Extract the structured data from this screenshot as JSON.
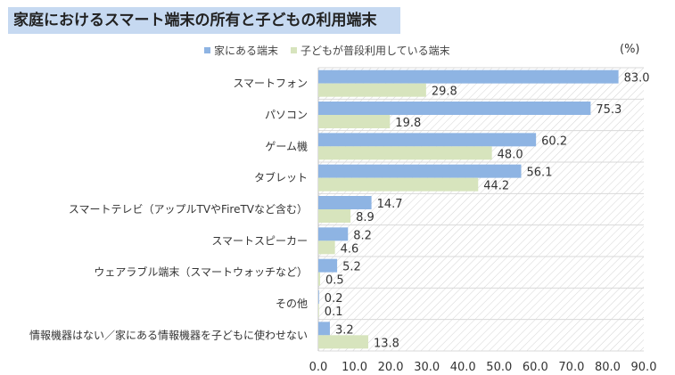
{
  "title": "家庭におけるスマート端末の所有と子どもの利用端末",
  "unit_label": "(%)",
  "chart_data": {
    "type": "bar",
    "orientation": "horizontal",
    "categories": [
      "スマートフォン",
      "パソコン",
      "ゲーム機",
      "タブレット",
      "スマートテレビ（アップルTVやFireTVなど含む）",
      "スマートスピーカー",
      "ウェアラブル端末（スマートウォッチなど）",
      "その他",
      "情報機器はない／家にある情報機器を子どもに使わせない"
    ],
    "series": [
      {
        "name": "家にある端末",
        "color": "#8eb4e3",
        "values": [
          83.0,
          75.3,
          60.2,
          56.1,
          14.7,
          8.2,
          5.2,
          0.2,
          3.2
        ]
      },
      {
        "name": "子どもが普段利用している端末",
        "color": "#d7e4bd",
        "values": [
          29.8,
          19.8,
          48.0,
          44.2,
          8.9,
          4.6,
          0.5,
          0.1,
          13.8
        ]
      }
    ],
    "value_labels": [
      [
        "83.0",
        "75.3",
        "60.2",
        "56.1",
        "14.7",
        "8.2",
        "5.2",
        "0.2",
        "3.2"
      ],
      [
        "29.8",
        "19.8",
        "48.0",
        "44.2",
        "8.9",
        "4.6",
        "0.5",
        "0.1",
        "13.8"
      ]
    ],
    "xlim": [
      0,
      90
    ],
    "x_ticks": [
      "0.0",
      "10.0",
      "20.0",
      "30.0",
      "40.0",
      "50.0",
      "60.0",
      "70.0",
      "80.0",
      "90.0"
    ],
    "legend_position": "top",
    "background": "hatched"
  }
}
